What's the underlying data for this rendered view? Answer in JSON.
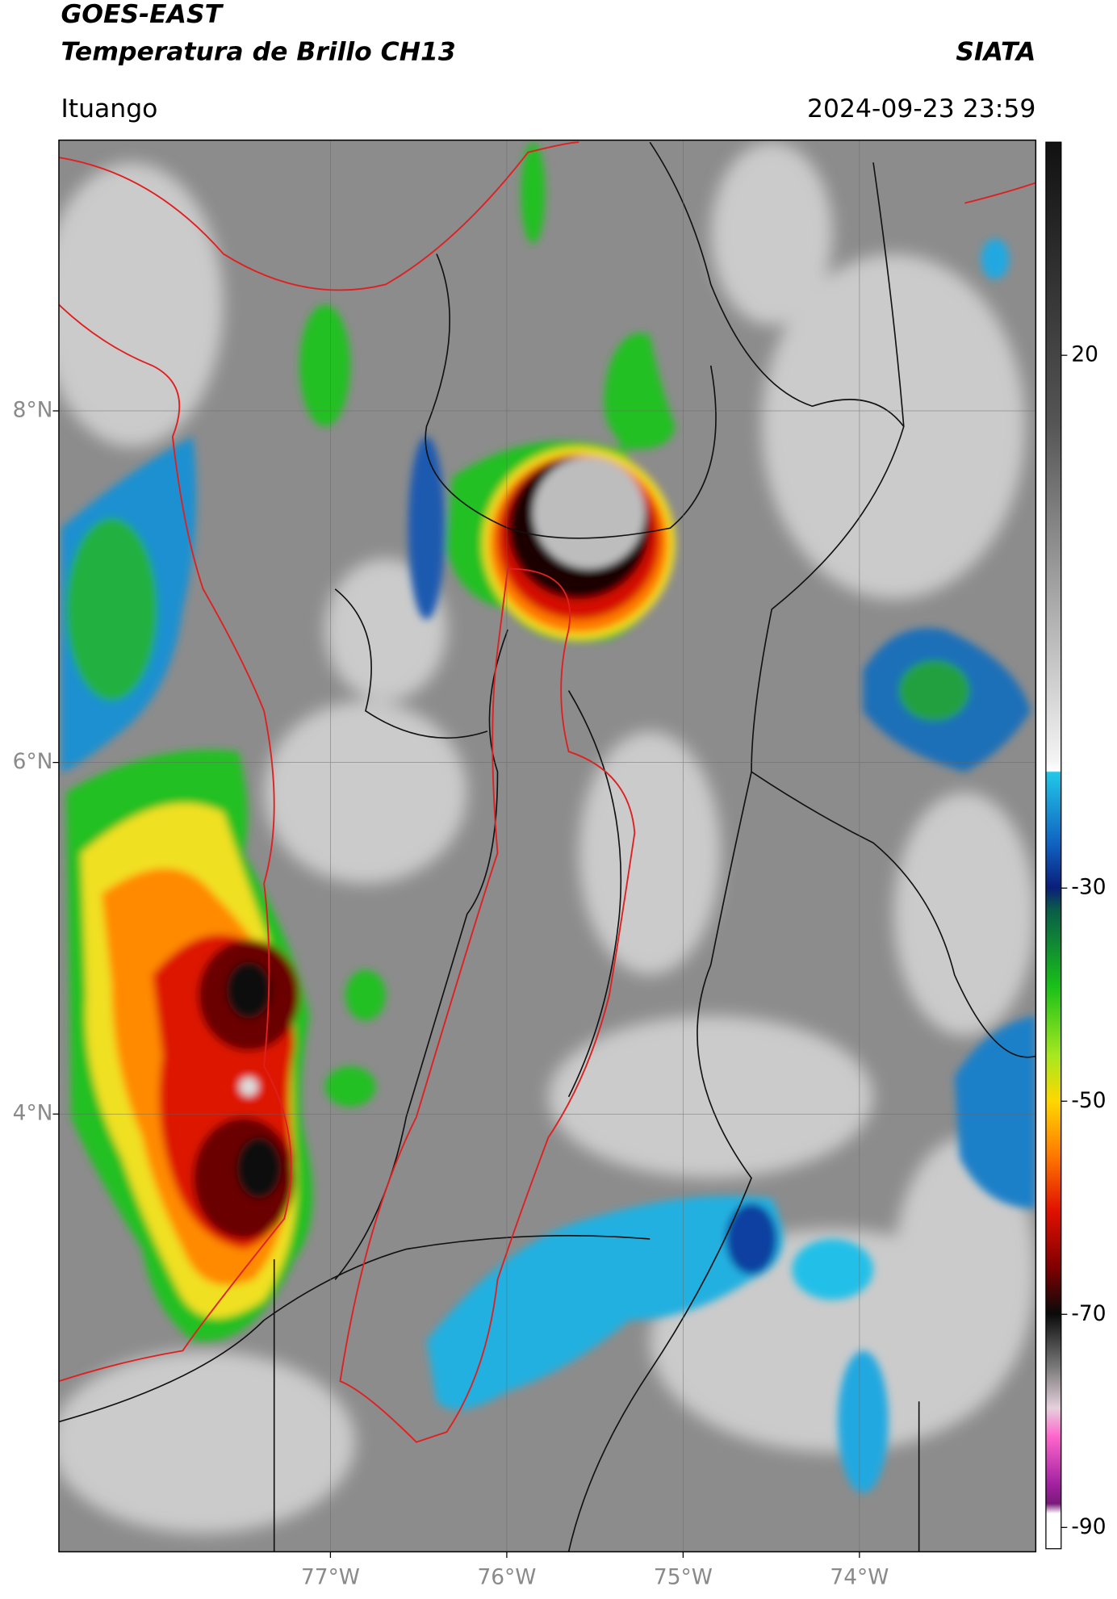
{
  "header": {
    "title": "GOES-EAST",
    "subtitle": "Temperatura de Brillo CH13",
    "source": "SIATA",
    "location": "Ituango",
    "datetime": "2024-09-23 23:59"
  },
  "map": {
    "xlim": [
      -78.54,
      -73.0
    ],
    "ylim": [
      1.51,
      9.54
    ],
    "xticks": [
      {
        "value": -77,
        "label": "77°W"
      },
      {
        "value": -76,
        "label": "76°W"
      },
      {
        "value": -75,
        "label": "75°W"
      },
      {
        "value": -74,
        "label": "74°W"
      }
    ],
    "yticks": [
      {
        "value": 8,
        "label": "8°N"
      },
      {
        "value": 6,
        "label": "6°N"
      },
      {
        "value": 4,
        "label": "4°N"
      }
    ]
  },
  "colorbar": {
    "lim": [
      -92,
      40
    ],
    "ticks": [
      20,
      -30,
      -50,
      -70,
      -90
    ]
  }
}
